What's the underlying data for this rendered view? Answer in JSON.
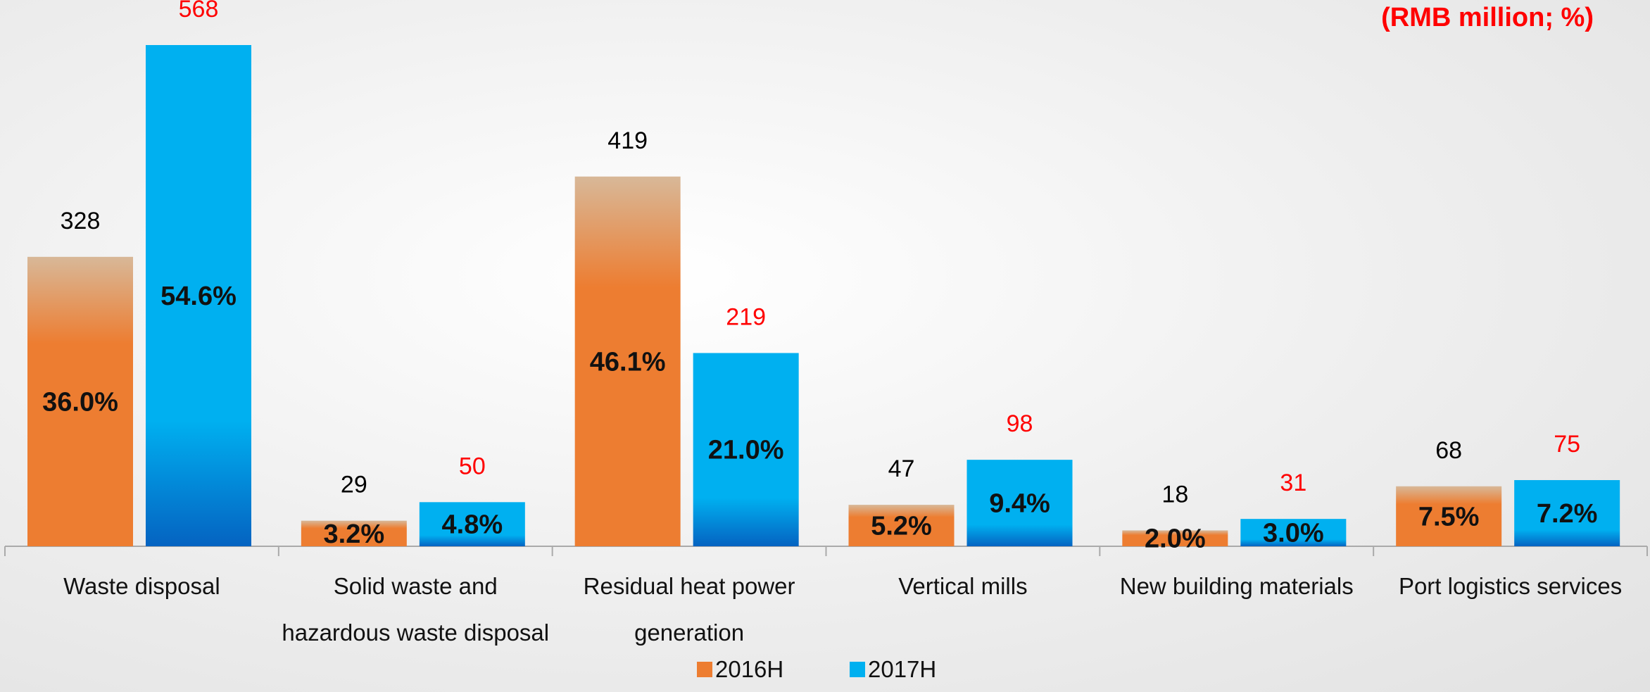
{
  "chart_data": {
    "type": "bar",
    "unit": "(RMB million; %)",
    "categories": [
      "Waste disposal",
      "Solid waste and hazardous waste disposal",
      "Residual heat power generation",
      "Vertical mills",
      "New building materials",
      "Port logistics services"
    ],
    "series": [
      {
        "name": "2016H",
        "color": "#ed7d31",
        "label_color": "#000000",
        "values": [
          328,
          29,
          419,
          47,
          18,
          68
        ],
        "shares": [
          36.0,
          3.2,
          46.1,
          5.2,
          2.0,
          7.5
        ],
        "share_labels": [
          "36.0%",
          "3.2%",
          "46.1%",
          "5.2%",
          "2.0%",
          "7.5%"
        ]
      },
      {
        "name": "2017H",
        "color": "#00b0f0",
        "label_color": "#ff0000",
        "values": [
          568,
          50,
          219,
          98,
          31,
          75
        ],
        "shares": [
          54.6,
          4.8,
          21.0,
          9.4,
          3.0,
          7.2
        ],
        "share_labels": [
          "54.6%",
          "4.8%",
          "21.0%",
          "9.4%",
          "3.0%",
          "7.2%"
        ]
      }
    ]
  }
}
